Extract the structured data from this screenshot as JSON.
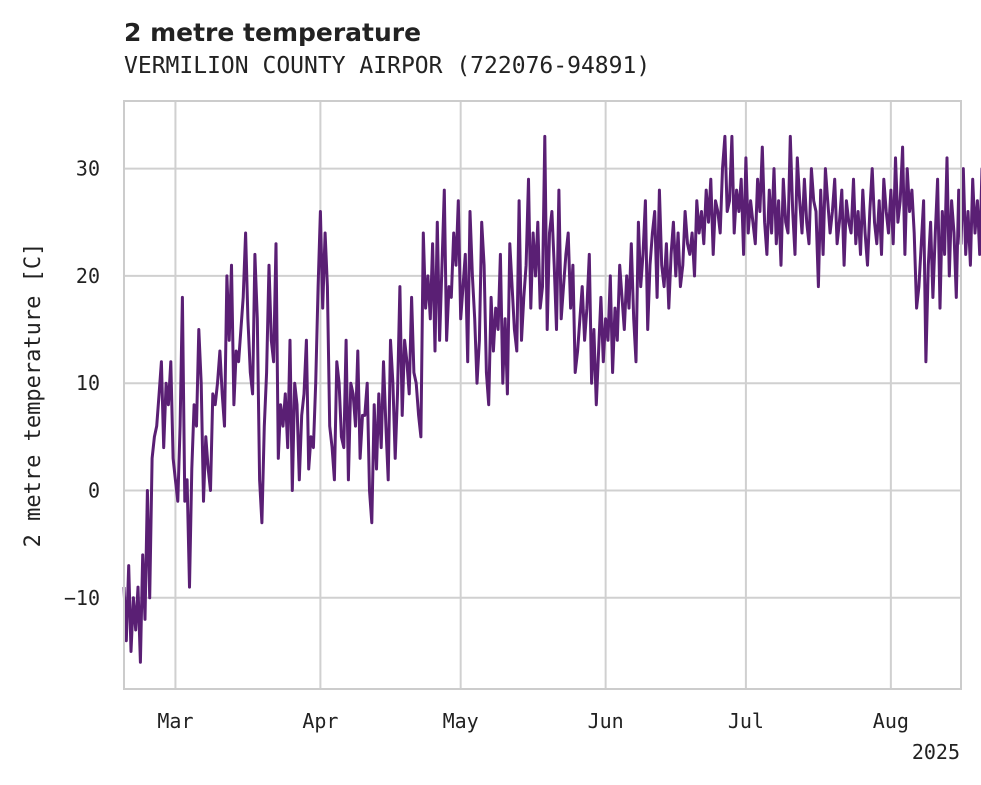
{
  "chart_data": {
    "type": "line",
    "title": "2 metre temperature",
    "subtitle": "VERMILION COUNTY AIRPOR (722076-94891)",
    "xlabel": "",
    "ylabel": "2 metre temperature [C]",
    "x_range": [
      "2025-02-18",
      "2025-08-16"
    ],
    "xlim": [
      0,
      179
    ],
    "ylim": [
      -18.5,
      36.3
    ],
    "y_ticks": [
      -10,
      0,
      10,
      20,
      30
    ],
    "x_ticks": [
      {
        "day": 11,
        "label": "Mar"
      },
      {
        "day": 42,
        "label": "Apr"
      },
      {
        "day": 72,
        "label": "May"
      },
      {
        "day": 103,
        "label": "Jun"
      },
      {
        "day": 133,
        "label": "Jul"
      },
      {
        "day": 164,
        "label": "Aug"
      }
    ],
    "year_label": "2025",
    "grid": true,
    "series": [
      {
        "color": "#5a1f74",
        "samples_per_day": 2,
        "values": [
          -9,
          -14,
          -7,
          -15,
          -10,
          -13,
          -9,
          -16,
          -6,
          -12,
          0,
          -10,
          3,
          5,
          6,
          9,
          12,
          4,
          10,
          8,
          12,
          3,
          1,
          -1,
          6,
          18,
          -1,
          1,
          -9,
          2,
          8,
          6,
          15,
          10,
          -1,
          5,
          2,
          0,
          9,
          8,
          10,
          13,
          9,
          6,
          20,
          14,
          21,
          8,
          13,
          12,
          15,
          18,
          24,
          16,
          11,
          9,
          22,
          16,
          1,
          -3,
          6,
          11,
          21,
          14,
          12,
          23,
          3,
          8,
          6,
          9,
          4,
          14,
          0,
          10,
          8,
          1,
          7,
          9,
          14,
          2,
          5,
          4,
          10,
          19,
          26,
          17,
          24,
          19,
          6,
          4,
          1,
          12,
          10,
          5,
          4,
          14,
          1,
          10,
          9,
          6,
          13,
          3,
          7,
          7,
          10,
          0,
          -3,
          8,
          2,
          9,
          4,
          12,
          6,
          1,
          14,
          10,
          3,
          9,
          19,
          7,
          14,
          12,
          9,
          18,
          11,
          10,
          7,
          5,
          24,
          17,
          20,
          16,
          23,
          13,
          25,
          14,
          21,
          28,
          14,
          19,
          18,
          24,
          21,
          27,
          16,
          19,
          22,
          12,
          26,
          20,
          16,
          10,
          14,
          25,
          21,
          11,
          8,
          18,
          13,
          17,
          15,
          22,
          10,
          16,
          9,
          23,
          19,
          15,
          13,
          27,
          14,
          18,
          21,
          29,
          17,
          24,
          20,
          25,
          17,
          19,
          33,
          15,
          24,
          26,
          21,
          15,
          28,
          16,
          19,
          22,
          24,
          17,
          21,
          11,
          13,
          16,
          19,
          14,
          17,
          22,
          10,
          15,
          8,
          13,
          18,
          12,
          16,
          14,
          20,
          11,
          17,
          14,
          21,
          18,
          15,
          20,
          17,
          23,
          16,
          12,
          25,
          19,
          22,
          27,
          15,
          21,
          24,
          26,
          18,
          28,
          21,
          19,
          23,
          17,
          22,
          25,
          20,
          24,
          19,
          21,
          26,
          23,
          22,
          24,
          20,
          27,
          24,
          26,
          23,
          28,
          25,
          29,
          22,
          27,
          26,
          24,
          30,
          33,
          26,
          27,
          33,
          24,
          28,
          26,
          29,
          22,
          31,
          24,
          27,
          25,
          23,
          29,
          26,
          32,
          25,
          22,
          28,
          24,
          30,
          23,
          27,
          21,
          29,
          25,
          24,
          33,
          26,
          22,
          31,
          27,
          24,
          29,
          25,
          23,
          30,
          27,
          26,
          19,
          28,
          22,
          30,
          27,
          24,
          26,
          29,
          23,
          25,
          28,
          21,
          27,
          25,
          24,
          29,
          23,
          26,
          22,
          28,
          24,
          21,
          26,
          30,
          25,
          23,
          27,
          22,
          29,
          26,
          24,
          28,
          23,
          31,
          25,
          27,
          32,
          22,
          30,
          26,
          28,
          24,
          17,
          19,
          23,
          27,
          12,
          21,
          25,
          18,
          24,
          29,
          17,
          26,
          22,
          31,
          20,
          27,
          24,
          18,
          28,
          23,
          30,
          22,
          26,
          21,
          29,
          24,
          27,
          22,
          30,
          26
        ]
      }
    ]
  }
}
